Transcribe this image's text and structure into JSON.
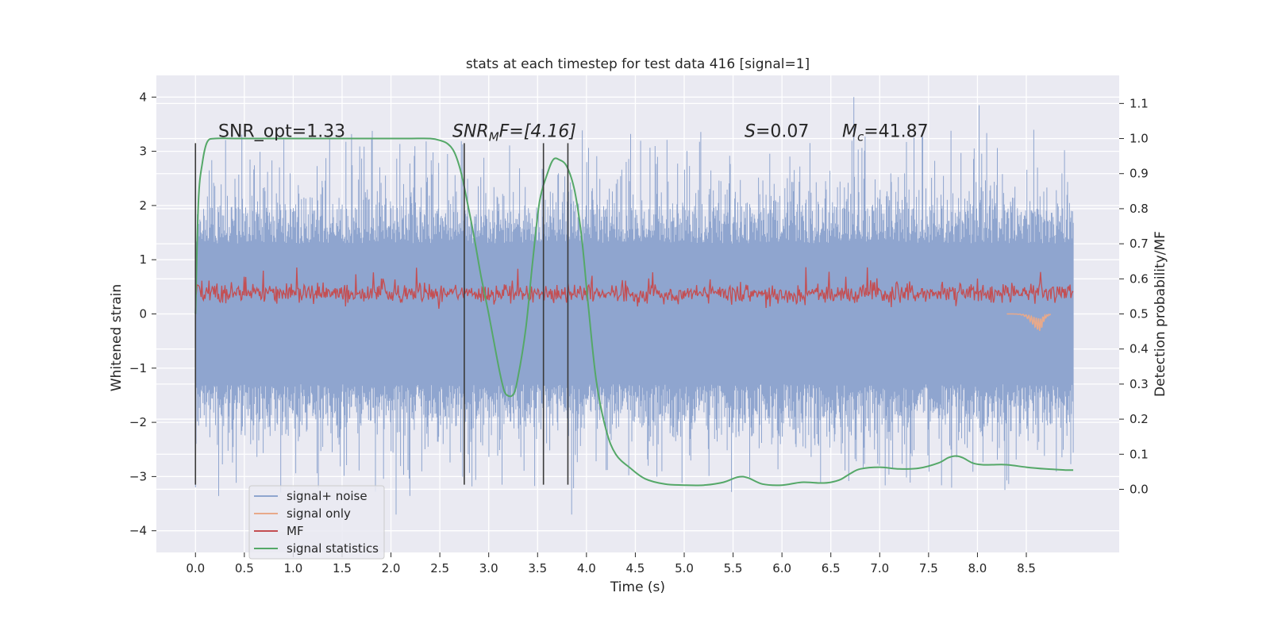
{
  "chart_data": {
    "type": "line",
    "title": "stats at each timestep for test data 416 [signal=1]",
    "xlabel": "Time (s)",
    "ylabel": "Whitened strain",
    "y2label": "Detection probability/MF",
    "xlim": [
      -0.4,
      9.45
    ],
    "ylim": [
      -4.4,
      4.4
    ],
    "y2lim": [
      -0.18,
      1.18
    ],
    "xticks": [
      "0.0",
      "0.5",
      "1.0",
      "1.5",
      "2.0",
      "2.5",
      "3.0",
      "3.5",
      "4.0",
      "4.5",
      "5.0",
      "5.5",
      "6.0",
      "6.5",
      "7.0",
      "7.5",
      "8.0",
      "8.5"
    ],
    "yticks": [
      "4",
      "3",
      "2",
      "1",
      "0",
      "−1",
      "−2",
      "−3",
      "−4"
    ],
    "y2ticks": [
      "1.1",
      "1.0",
      "0.9",
      "0.8",
      "0.7",
      "0.6",
      "0.5",
      "0.4",
      "0.3",
      "0.2",
      "0.1",
      "0.0"
    ],
    "annotations": {
      "snr_opt": "SNR_opt=1.33",
      "snr_mf_base": "SNR",
      "snr_mf_sub": "M",
      "snr_mf_rest": "F=[4.16]",
      "s_base": "S",
      "s_rest": "=0.07",
      "mc_base": "M",
      "mc_sub": "c",
      "mc_rest": "=41.87"
    },
    "vlines_x": [
      0.0,
      2.75,
      3.56,
      3.81
    ],
    "legend": {
      "placement": "lower-left",
      "entries": [
        "signal+ noise",
        "signal only",
        "MF",
        "signal statistics"
      ]
    },
    "colors": {
      "noise": "#8fa5cf",
      "signal": "#e8a98a",
      "signal_tip": "#d39a80",
      "mf": "#c44e52",
      "stat": "#55a868",
      "vline": "#3a3a3a",
      "plot_bg": "#eaeaf2",
      "grid": "#ffffff"
    },
    "series": [
      {
        "name": "signal statistics",
        "axis": "right",
        "x": [
          0.0,
          0.03,
          0.07,
          0.12,
          0.2,
          0.4,
          0.8,
          1.2,
          1.6,
          2.0,
          2.2,
          2.4,
          2.5,
          2.58,
          2.65,
          2.72,
          2.78,
          2.85,
          2.92,
          3.0,
          3.08,
          3.14,
          3.18,
          3.25,
          3.3,
          3.38,
          3.45,
          3.52,
          3.6,
          3.66,
          3.72,
          3.8,
          3.88,
          3.95,
          4.02,
          4.1,
          4.2,
          4.3,
          4.45,
          4.6,
          4.8,
          5.0,
          5.2,
          5.4,
          5.55,
          5.65,
          5.8,
          6.0,
          6.2,
          6.4,
          6.5,
          6.6,
          6.7,
          6.8,
          7.0,
          7.2,
          7.4,
          7.6,
          7.7,
          7.78,
          7.85,
          7.95,
          8.05,
          8.15,
          8.3,
          8.5,
          8.7,
          8.9,
          8.98
        ],
        "values": [
          0.5,
          0.82,
          0.93,
          0.99,
          1.0,
          1.0,
          1.0,
          1.0,
          1.0,
          1.0,
          1.0,
          1.0,
          0.995,
          0.985,
          0.96,
          0.9,
          0.82,
          0.72,
          0.61,
          0.5,
          0.38,
          0.3,
          0.27,
          0.27,
          0.32,
          0.46,
          0.65,
          0.82,
          0.9,
          0.94,
          0.94,
          0.92,
          0.85,
          0.72,
          0.52,
          0.31,
          0.17,
          0.1,
          0.06,
          0.03,
          0.015,
          0.012,
          0.012,
          0.02,
          0.035,
          0.033,
          0.015,
          0.012,
          0.02,
          0.018,
          0.02,
          0.028,
          0.045,
          0.058,
          0.063,
          0.058,
          0.06,
          0.075,
          0.09,
          0.095,
          0.09,
          0.075,
          0.07,
          0.07,
          0.07,
          0.063,
          0.058,
          0.055,
          0.055
        ]
      },
      {
        "name": "MF",
        "axis": "left",
        "x_range": [
          0.0,
          8.98
        ],
        "center": 0.38,
        "spread": 0.17
      },
      {
        "name": "signal+ noise",
        "axis": "left",
        "x_range": [
          0.0,
          8.98
        ],
        "envelope": 1.2,
        "peak_max": 4.0,
        "peak_min": -3.7
      },
      {
        "name": "signal only",
        "axis": "left",
        "x_range": [
          8.3,
          8.75
        ],
        "min_value": -0.4,
        "min_at": 8.65
      }
    ]
  }
}
